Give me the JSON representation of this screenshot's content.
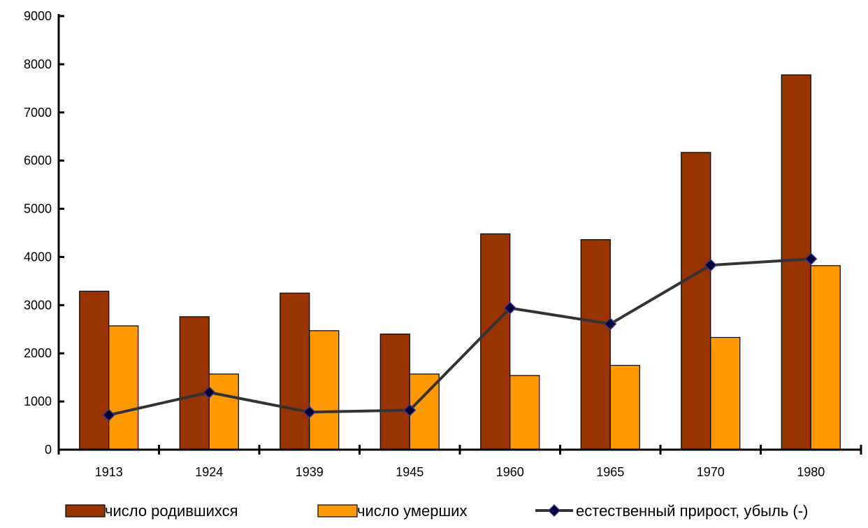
{
  "chart_data": {
    "type": "bar",
    "title": "",
    "xlabel": "",
    "ylabel": "",
    "ylim": [
      0,
      9000
    ],
    "ytick_step": 1000,
    "grid": false,
    "legend_position": "bottom",
    "categories": [
      "1913",
      "1924",
      "1939",
      "1945",
      "1960",
      "1965",
      "1970",
      "1980"
    ],
    "series": [
      {
        "name": "число родившихся",
        "kind": "bar",
        "color": "#993300",
        "values": [
          3290,
          2760,
          3250,
          2400,
          4480,
          4360,
          6170,
          7780
        ]
      },
      {
        "name": "число умерших",
        "kind": "bar",
        "color": "#FF9900",
        "values": [
          2570,
          1570,
          2470,
          1570,
          1540,
          1750,
          2330,
          3820
        ]
      },
      {
        "name": "естественный прирост, убыль (-)",
        "kind": "line",
        "color": "#333333",
        "marker_color": "#000033",
        "values": [
          720,
          1190,
          780,
          820,
          2940,
          2610,
          3830,
          3960
        ]
      }
    ]
  }
}
